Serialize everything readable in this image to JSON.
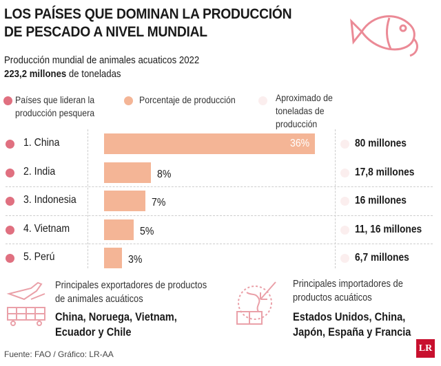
{
  "title": "LOS PAÍSES QUE DOMINAN LA PRODUCCIÓN DE PESCADO A NIVEL MUNDIAL",
  "subtitle_line1": "Producción mundial de animales acuaticos 2022",
  "subtitle_value": "223,2 millones",
  "subtitle_suffix": " de toneladas",
  "legend": [
    {
      "label": "Países que lideran la producción pesquera",
      "color": "#e07080"
    },
    {
      "label": "Porcentaje de producción",
      "color": "#f4b596"
    },
    {
      "label": "Aproximado de toneladas de producción",
      "color": "#fbeeee"
    }
  ],
  "chart_data": {
    "type": "bar",
    "orientation": "horizontal",
    "categories": [
      "1. China",
      "2. India",
      "3. Indonesia",
      "4. Vietnam",
      "5. Perú"
    ],
    "values": [
      36,
      8,
      7,
      5,
      3
    ],
    "value_labels": [
      "36%",
      "8%",
      "7%",
      "5%",
      "3%"
    ],
    "tonnage_labels": [
      "80 millones",
      "17,8 millones",
      "16 millones",
      "11, 16 millones",
      "6,7 millones"
    ],
    "bar_color": "#f4b596"
  },
  "exporters": {
    "heading": "Principales exportadores de productos de animales acuáticos",
    "countries": "China, Noruega, Vietnam, Ecuador y Chile",
    "icon": "airplane-cargo-icon"
  },
  "importers": {
    "heading": "Principales importadores de productos acuáticos",
    "countries": "Estados Unidos, China, Japón, España y Francia",
    "icon": "globe-import-icon"
  },
  "source": "Fuente: FAO / Gráfico: LR-AA",
  "logo": "LR",
  "colors": {
    "accent": "#e07080",
    "bar": "#f4b596",
    "light": "#fbeeee",
    "logo": "#c8102e"
  }
}
